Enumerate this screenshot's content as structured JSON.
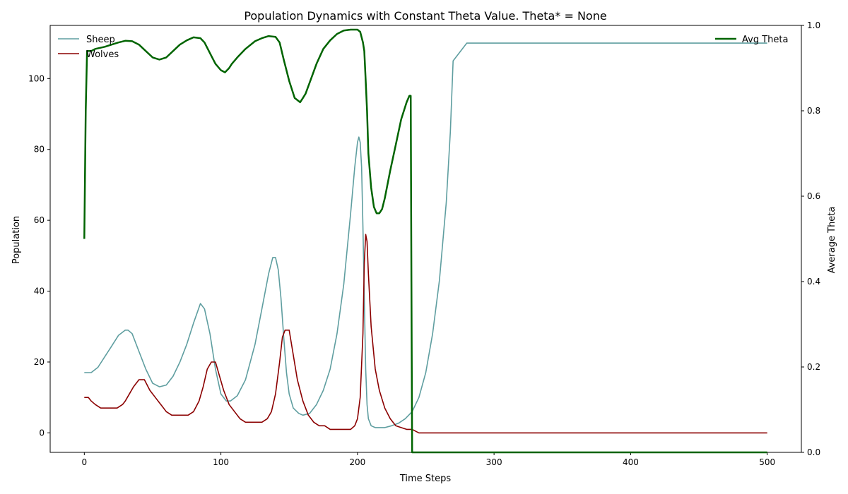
{
  "chart_data": {
    "type": "line",
    "title": "Population Dynamics with Constant Theta Value. Theta* = None",
    "xlabel": "Time Steps",
    "ylabel": "Population",
    "y2label": "Average Theta",
    "xlim": [
      -25,
      525
    ],
    "ylim": [
      -5.5,
      115
    ],
    "y2lim": [
      0,
      1
    ],
    "xticks": [
      0,
      100,
      200,
      300,
      400,
      500
    ],
    "yticks": [
      0,
      20,
      40,
      60,
      80,
      100
    ],
    "y2ticks": [
      0.0,
      0.2,
      0.4,
      0.6,
      0.8,
      1.0
    ],
    "grid": false,
    "series": [
      {
        "name": "Sheep",
        "axis": "left",
        "color": "#5f9ea0",
        "legend": "top-left",
        "x": [
          0,
          5,
          10,
          15,
          20,
          25,
          30,
          32,
          35,
          40,
          45,
          50,
          55,
          60,
          65,
          70,
          75,
          80,
          85,
          88,
          92,
          96,
          100,
          104,
          107,
          112,
          118,
          125,
          130,
          135,
          138,
          140,
          142,
          144,
          146,
          148,
          150,
          153,
          157,
          160,
          165,
          170,
          175,
          180,
          185,
          190,
          195,
          198,
          200,
          201,
          202,
          203,
          204,
          205,
          206,
          207,
          208,
          210,
          213,
          216,
          220,
          225,
          230,
          235,
          240,
          245,
          250,
          255,
          260,
          265,
          268,
          270,
          280,
          300,
          350,
          400,
          450,
          500
        ],
        "y": [
          17,
          17,
          18.5,
          21.5,
          24.5,
          27.5,
          29,
          29,
          28,
          23,
          18,
          14,
          13,
          13.5,
          16,
          20,
          25,
          31,
          36.5,
          35,
          28,
          18,
          11,
          9,
          9,
          10.5,
          15,
          25,
          35,
          45,
          49.5,
          49.5,
          46,
          38,
          27,
          17,
          11,
          7,
          5.5,
          5,
          5.5,
          8,
          12,
          18,
          28,
          42,
          62,
          75,
          82,
          83.5,
          82,
          75,
          58,
          38,
          18,
          8,
          4,
          2,
          1.5,
          1.5,
          1.5,
          2,
          2.7,
          4,
          6,
          10,
          17,
          28,
          43,
          65,
          85,
          105,
          110,
          110,
          110,
          110,
          110,
          110
        ]
      },
      {
        "name": "Wolves",
        "axis": "left",
        "color": "#8b0000",
        "legend": "top-left",
        "x": [
          0,
          3,
          5,
          8,
          12,
          18,
          24,
          28,
          30,
          33,
          36,
          40,
          44,
          48,
          52,
          56,
          60,
          64,
          68,
          72,
          76,
          80,
          84,
          87,
          90,
          93,
          96,
          99,
          102,
          106,
          110,
          114,
          118,
          122,
          126,
          130,
          134,
          137,
          140,
          143,
          145,
          147,
          150,
          153,
          156,
          160,
          164,
          168,
          172,
          176,
          180,
          185,
          190,
          195,
          198,
          200,
          202,
          204,
          205,
          206,
          207,
          208,
          210,
          213,
          216,
          220,
          224,
          228,
          232,
          236,
          240,
          245,
          260,
          300,
          400,
          500
        ],
        "y": [
          10,
          10,
          9,
          8,
          7,
          7,
          7,
          8,
          9,
          11,
          13,
          15,
          15,
          12,
          10,
          8,
          6,
          5,
          5,
          5,
          5,
          6,
          9,
          13,
          18,
          20,
          20,
          16,
          12,
          8,
          6,
          4,
          3,
          3,
          3,
          3,
          4,
          6,
          11,
          20,
          27,
          29,
          29,
          22,
          15,
          9,
          5,
          3,
          2,
          2,
          1,
          1,
          1,
          1,
          2,
          4,
          10,
          28,
          48,
          56,
          54,
          45,
          30,
          18,
          12,
          7,
          4,
          2,
          1.5,
          1,
          1,
          0,
          0,
          0,
          0,
          0
        ]
      },
      {
        "name": "Avg Theta",
        "axis": "right",
        "color": "#006400",
        "legend": "top-right",
        "x": [
          0,
          1,
          2,
          5,
          8,
          15,
          20,
          25,
          30,
          35,
          40,
          45,
          50,
          55,
          60,
          65,
          70,
          75,
          80,
          85,
          88,
          92,
          96,
          100,
          103,
          106,
          108,
          112,
          118,
          125,
          130,
          135,
          140,
          143,
          146,
          150,
          154,
          158,
          160,
          162,
          166,
          170,
          175,
          180,
          185,
          190,
          195,
          200,
          202,
          204,
          205,
          206,
          207,
          208,
          210,
          212,
          214,
          216,
          218,
          220,
          224,
          228,
          232,
          236,
          238,
          239,
          239.5,
          240,
          241,
          300,
          400,
          500
        ],
        "y": [
          0.5,
          0.8,
          0.94,
          0.94,
          0.945,
          0.95,
          0.955,
          0.96,
          0.964,
          0.963,
          0.955,
          0.94,
          0.925,
          0.92,
          0.925,
          0.94,
          0.955,
          0.965,
          0.972,
          0.97,
          0.96,
          0.935,
          0.91,
          0.895,
          0.89,
          0.9,
          0.91,
          0.925,
          0.945,
          0.963,
          0.97,
          0.975,
          0.973,
          0.96,
          0.92,
          0.87,
          0.83,
          0.82,
          0.83,
          0.84,
          0.875,
          0.91,
          0.945,
          0.965,
          0.98,
          0.988,
          0.99,
          0.99,
          0.985,
          0.96,
          0.94,
          0.87,
          0.8,
          0.7,
          0.62,
          0.575,
          0.56,
          0.56,
          0.57,
          0.595,
          0.66,
          0.72,
          0.78,
          0.82,
          0.835,
          0.835,
          0.4,
          0,
          0,
          0,
          0,
          0
        ]
      }
    ]
  }
}
